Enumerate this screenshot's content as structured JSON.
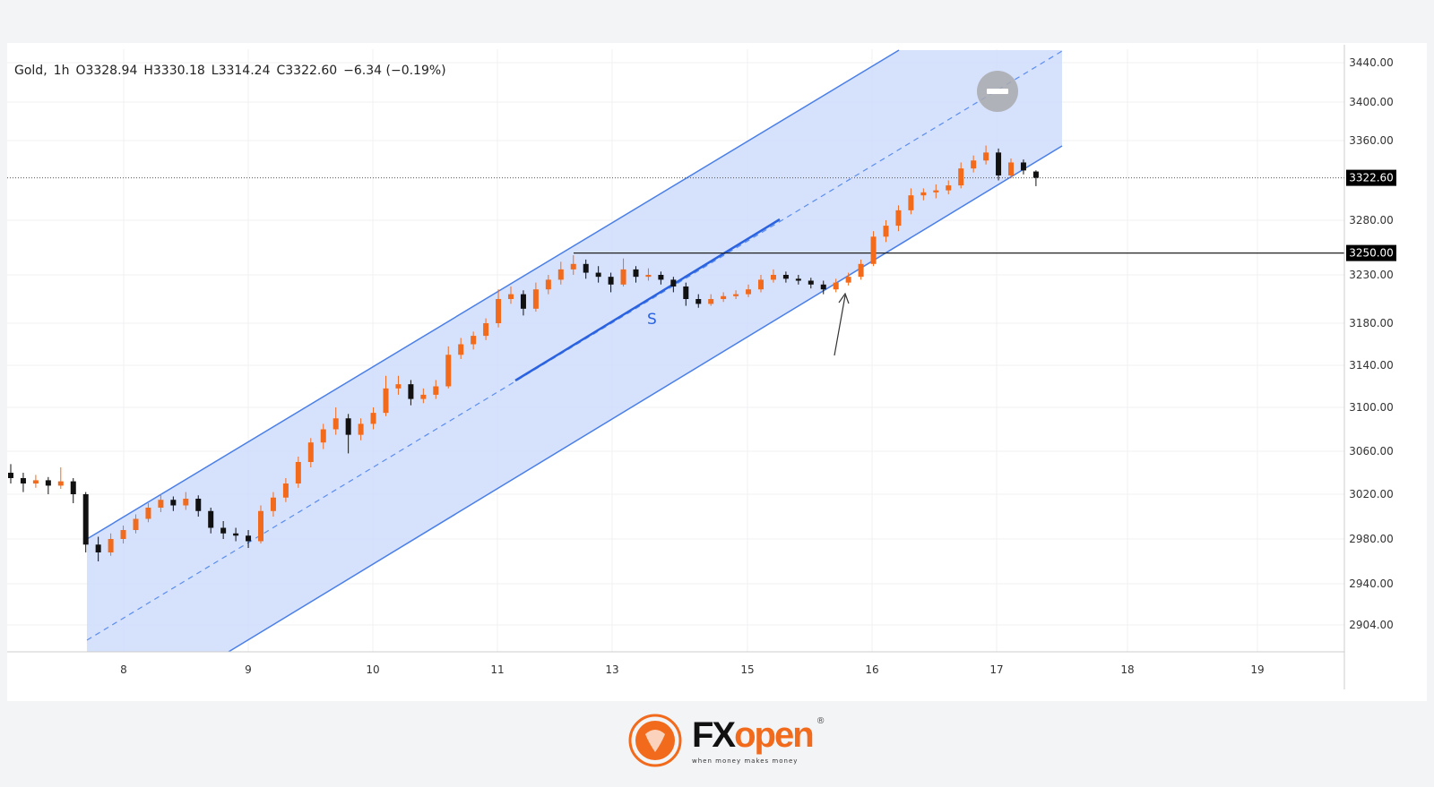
{
  "header": {
    "symbol": "Gold",
    "interval": "1h",
    "open": "O3328.94",
    "high": "H3330.18",
    "low": "L3314.24",
    "close": "C3322.60",
    "change": "−6.34 (−0.19%)"
  },
  "logo": {
    "brand_fx": "FX",
    "brand_open": "open",
    "tagline": "when money makes money",
    "registered": "®"
  },
  "chart_data": {
    "type": "candlestick",
    "title": "Gold, 1h",
    "y_ticks": [
      3440,
      3400,
      3360,
      3280,
      3230,
      3180,
      3140,
      3100,
      3060,
      3020,
      2980,
      2940,
      2904
    ],
    "y_tick_labels": [
      "3440.00",
      "3400.00",
      "3360.00",
      "3280.00",
      "3230.00",
      "3180.00",
      "3140.00",
      "3100.00",
      "3060.00",
      "3020.00",
      "2980.00",
      "2940.00",
      "2904.00"
    ],
    "x_tick_labels": [
      "8",
      "9",
      "10",
      "11",
      "13",
      "15",
      "16",
      "17",
      "18",
      "19"
    ],
    "last_price": {
      "value": 3322.6,
      "label": "3322.60"
    },
    "level": {
      "value": 3250,
      "label": "3250.00"
    },
    "annotation_text": "S",
    "up_color": "#f26a1b",
    "down_color": "#111111",
    "channel_color": "#4a7fe8",
    "channel_fill": "#cfdcfb",
    "candles": [
      [
        3040,
        3048,
        3030,
        3035
      ],
      [
        3035,
        3040,
        3022,
        3030
      ],
      [
        3030,
        3038,
        3026,
        3033
      ],
      [
        3033,
        3036,
        3020,
        3028
      ],
      [
        3028,
        3045,
        3025,
        3032
      ],
      [
        3032,
        3035,
        3012,
        3020
      ],
      [
        3020,
        3022,
        2968,
        2975
      ],
      [
        2975,
        2982,
        2960,
        2968
      ],
      [
        2968,
        2985,
        2965,
        2980
      ],
      [
        2980,
        2992,
        2976,
        2988
      ],
      [
        2988,
        3002,
        2985,
        2998
      ],
      [
        2998,
        3012,
        2995,
        3008
      ],
      [
        3008,
        3020,
        3004,
        3015
      ],
      [
        3015,
        3018,
        3005,
        3010
      ],
      [
        3010,
        3022,
        3006,
        3016
      ],
      [
        3016,
        3019,
        3000,
        3005
      ],
      [
        3005,
        3008,
        2985,
        2990
      ],
      [
        2990,
        2996,
        2980,
        2985
      ],
      [
        2985,
        2990,
        2978,
        2983
      ],
      [
        2983,
        2988,
        2972,
        2978
      ],
      [
        2978,
        3010,
        2976,
        3005
      ],
      [
        3005,
        3022,
        3000,
        3017
      ],
      [
        3017,
        3035,
        3013,
        3030
      ],
      [
        3030,
        3055,
        3026,
        3050
      ],
      [
        3050,
        3072,
        3045,
        3068
      ],
      [
        3068,
        3085,
        3062,
        3080
      ],
      [
        3080,
        3100,
        3075,
        3090
      ],
      [
        3090,
        3094,
        3058,
        3075
      ],
      [
        3075,
        3090,
        3070,
        3085
      ],
      [
        3085,
        3100,
        3080,
        3095
      ],
      [
        3095,
        3130,
        3092,
        3118
      ],
      [
        3118,
        3130,
        3112,
        3122
      ],
      [
        3122,
        3126,
        3102,
        3108
      ],
      [
        3108,
        3118,
        3104,
        3112
      ],
      [
        3112,
        3126,
        3108,
        3120
      ],
      [
        3120,
        3158,
        3118,
        3150
      ],
      [
        3150,
        3166,
        3146,
        3160
      ],
      [
        3160,
        3172,
        3155,
        3168
      ],
      [
        3168,
        3185,
        3164,
        3180
      ],
      [
        3180,
        3215,
        3176,
        3205
      ],
      [
        3205,
        3218,
        3200,
        3210
      ],
      [
        3210,
        3214,
        3188,
        3195
      ],
      [
        3195,
        3222,
        3192,
        3215
      ],
      [
        3215,
        3230,
        3210,
        3225
      ],
      [
        3225,
        3242,
        3220,
        3235
      ],
      [
        3235,
        3248,
        3230,
        3240
      ],
      [
        3240,
        3244,
        3226,
        3232
      ],
      [
        3232,
        3238,
        3222,
        3228
      ],
      [
        3228,
        3232,
        3212,
        3220
      ],
      [
        3220,
        3245,
        3218,
        3235
      ],
      [
        3235,
        3238,
        3222,
        3228
      ],
      [
        3228,
        3236,
        3224,
        3230
      ],
      [
        3230,
        3233,
        3220,
        3225
      ],
      [
        3225,
        3228,
        3212,
        3218
      ],
      [
        3218,
        3222,
        3198,
        3205
      ],
      [
        3205,
        3210,
        3196,
        3200
      ],
      [
        3200,
        3210,
        3198,
        3205
      ],
      [
        3205,
        3212,
        3202,
        3208
      ],
      [
        3208,
        3214,
        3205,
        3210
      ],
      [
        3210,
        3220,
        3207,
        3215
      ],
      [
        3215,
        3230,
        3212,
        3225
      ],
      [
        3225,
        3235,
        3222,
        3230
      ],
      [
        3230,
        3233,
        3222,
        3226
      ],
      [
        3226,
        3230,
        3220,
        3224
      ],
      [
        3224,
        3227,
        3216,
        3220
      ],
      [
        3220,
        3224,
        3210,
        3215
      ],
      [
        3215,
        3226,
        3212,
        3222
      ],
      [
        3222,
        3232,
        3219,
        3228
      ],
      [
        3228,
        3244,
        3225,
        3240
      ],
      [
        3240,
        3270,
        3238,
        3265
      ],
      [
        3265,
        3280,
        3260,
        3275
      ],
      [
        3275,
        3295,
        3270,
        3290
      ],
      [
        3290,
        3312,
        3286,
        3305
      ],
      [
        3305,
        3312,
        3300,
        3308
      ],
      [
        3308,
        3316,
        3302,
        3310
      ],
      [
        3310,
        3320,
        3306,
        3315
      ],
      [
        3315,
        3338,
        3312,
        3332
      ],
      [
        3332,
        3345,
        3328,
        3340
      ],
      [
        3340,
        3355,
        3336,
        3348
      ],
      [
        3348,
        3352,
        3320,
        3325
      ],
      [
        3325,
        3342,
        3322,
        3338
      ],
      [
        3338,
        3341,
        3326,
        3330
      ],
      [
        3328.94,
        3330.18,
        3314.24,
        3322.6
      ]
    ]
  }
}
